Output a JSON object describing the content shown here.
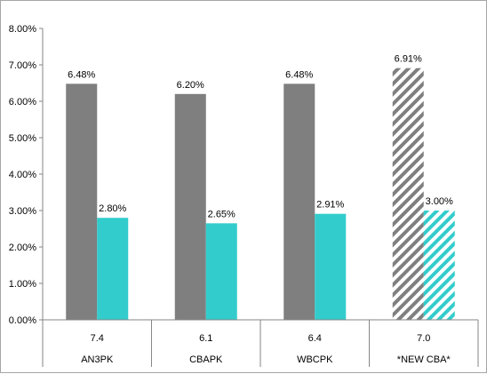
{
  "chart_data": {
    "type": "bar",
    "title": "",
    "xlabel": "",
    "ylabel": "",
    "ylim": [
      0,
      8
    ],
    "y_ticks": [
      0,
      1,
      2,
      3,
      4,
      5,
      6,
      7,
      8
    ],
    "y_tick_labels": [
      "0.00%",
      "1.00%",
      "2.00%",
      "3.00%",
      "4.00%",
      "5.00%",
      "6.00%",
      "7.00%",
      "8.00%"
    ],
    "grid": false,
    "legend": "none",
    "categories": [
      {
        "top": "7.4",
        "bottom": "AN3PK"
      },
      {
        "top": "6.1",
        "bottom": "CBAPK"
      },
      {
        "top": "6.4",
        "bottom": "WBCPK"
      },
      {
        "top": "7.0",
        "bottom": "*NEW CBA*"
      }
    ],
    "series": [
      {
        "values": [
          6.48,
          6.2,
          6.48,
          6.91
        ],
        "labels": [
          "6.48%",
          "6.20%",
          "6.48%",
          "6.91%"
        ],
        "color": "#7f7f7f",
        "hatched_last": true
      },
      {
        "values": [
          2.8,
          2.65,
          2.91,
          3.0
        ],
        "labels": [
          "2.80%",
          "2.65%",
          "2.91%",
          "3.00%"
        ],
        "color": "#33cccc",
        "hatched_last": true
      }
    ]
  }
}
